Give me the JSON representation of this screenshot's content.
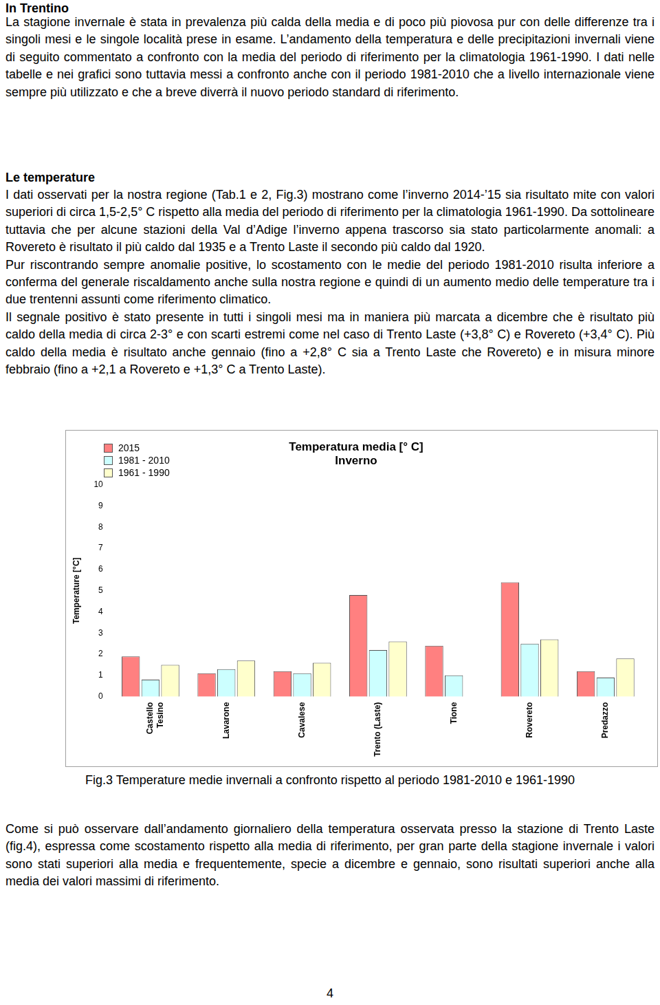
{
  "heading": "In Trentino",
  "paragraphs_before": [
    "La stagione invernale è stata in prevalenza più calda della media e di poco più piovosa pur con delle differenze tra i singoli mesi e le singole località prese in esame. L’andamento della temperatura e delle precipitazioni invernali viene di seguito commentato a confronto con la media del periodo di riferimento per la climatologia 1961-1990. I dati nelle tabelle e nei grafici sono tuttavia messi a confronto anche con il periodo 1981-2010 che a livello internazionale viene sempre più utilizzato e che a breve diverrà il nuovo periodo standard di riferimento."
  ],
  "subheading": "Le temperature",
  "paragraphs": [
    "I dati osservati per la nostra regione (Tab.1 e 2, Fig.3) mostrano come l’inverno 2014-’15 sia risultato mite con valori superiori di circa 1,5-2,5° C rispetto alla media del periodo di riferimento per la climatologia 1961-1990. Da sottolineare tuttavia che per alcune stazioni della Val d’Adige l’inverno appena trascorso sia stato particolarmente anomali: a Rovereto è risultato il più caldo dal 1935 e a Trento Laste il secondo più caldo dal 1920.",
    "Pur riscontrando sempre anomalie positive, lo scostamento con le medie del periodo 1981-2010 risulta inferiore a conferma del generale riscaldamento anche sulla nostra regione e quindi di un aumento medio delle temperature tra i due trentenni assunti come riferimento climatico.",
    "Il segnale positivo è stato presente in tutti i singoli mesi ma in maniera più marcata a dicembre che è risultato più caldo della media di circa 2-3° e con scarti estremi come nel caso di Trento Laste (+3,8° C) e Rovereto (+3,4° C). Più caldo della media è risultato anche gennaio (fino a +2,8° C sia a Trento Laste che Rovereto) e in misura minore febbraio (fino a +2,1 a Rovereto e +1,3° C a Trento Laste)."
  ],
  "chart_data": {
    "type": "bar",
    "title": [
      "Temperatura media [° C]",
      "Inverno"
    ],
    "y_label": "Temperature [°C]",
    "categories": [
      [
        "Castello",
        "Tesino"
      ],
      "Lavarone",
      "Cavalese",
      "Trento (Laste)",
      "Tione",
      "Rovereto",
      "Predazzo"
    ],
    "series": [
      {
        "name": "2015",
        "color": "#ff8080",
        "values": [
          1.9,
          1.1,
          1.2,
          4.8,
          2.4,
          5.4,
          1.2
        ]
      },
      {
        "name": "1981 - 2010",
        "color": "#ccffff",
        "values": [
          0.8,
          1.3,
          1.1,
          2.2,
          1.0,
          2.5,
          0.9
        ]
      },
      {
        "name": "1961 - 1990",
        "color": "#ffffcc",
        "values": [
          1.5,
          1.7,
          1.6,
          2.6,
          null,
          2.7,
          1.8
        ]
      }
    ],
    "ylim": [
      0,
      10
    ],
    "yticks": [
      0,
      1,
      2,
      3,
      4,
      5,
      6,
      7,
      8,
      9,
      10
    ],
    "grid": false,
    "legend": "upper left"
  },
  "caption": "Fig.3 Temperature medie invernali a confronto rispetto al periodo 1981-2010 e 1961-1990",
  "paragraphs_after": [
    "Come si può osservare dall’andamento giornaliero della temperatura osservata presso la stazione di Trento Laste (fig.4), espressa come scostamento rispetto alla media di riferimento, per gran parte della stagione invernale i valori sono stati superiori alla media e frequentemente, specie a dicembre e gennaio, sono risultati superiori anche alla media dei valori massimi di riferimento."
  ],
  "page_number": "4"
}
